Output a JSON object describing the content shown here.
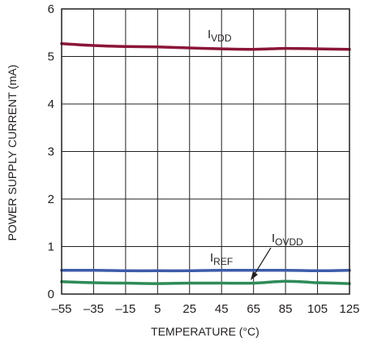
{
  "chart_data": {
    "type": "line",
    "xlabel": "TEMPERATURE (°C)",
    "ylabel": "POWER SUPPLY CURRENT (mA)",
    "xlim": [
      -55,
      125
    ],
    "ylim": [
      0,
      6
    ],
    "x_ticks": [
      "–55",
      "–35",
      "–15",
      "5",
      "25",
      "45",
      "65",
      "85",
      "105",
      "125"
    ],
    "y_ticks": [
      "0",
      "1",
      "2",
      "3",
      "4",
      "5",
      "6"
    ],
    "grid": true,
    "series": [
      {
        "name_main": "I",
        "name_sub": "VDD",
        "color": "#8b1538",
        "x": [
          -55,
          -35,
          -15,
          5,
          25,
          45,
          65,
          85,
          105,
          125
        ],
        "y": [
          5.27,
          5.23,
          5.21,
          5.2,
          5.18,
          5.16,
          5.15,
          5.17,
          5.16,
          5.15
        ]
      },
      {
        "name_main": "I",
        "name_sub": "REF",
        "color": "#3d5ba9",
        "x": [
          -55,
          -35,
          -15,
          5,
          25,
          45,
          65,
          85,
          105,
          125
        ],
        "y": [
          0.5,
          0.5,
          0.49,
          0.49,
          0.49,
          0.5,
          0.5,
          0.5,
          0.49,
          0.5
        ]
      },
      {
        "name_main": "I",
        "name_sub": "OVDD",
        "color": "#2e8b57",
        "x": [
          -55,
          -35,
          -15,
          5,
          25,
          45,
          65,
          85,
          105,
          125
        ],
        "y": [
          0.26,
          0.24,
          0.23,
          0.22,
          0.23,
          0.23,
          0.23,
          0.27,
          0.24,
          0.22
        ]
      }
    ]
  }
}
